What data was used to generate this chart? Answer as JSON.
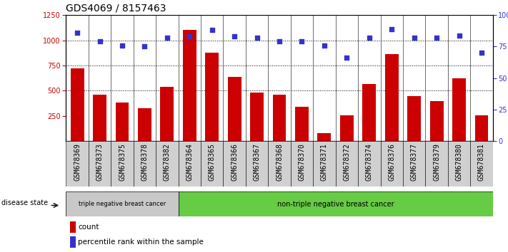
{
  "title": "GDS4069 / 8157463",
  "samples": [
    "GSM678369",
    "GSM678373",
    "GSM678375",
    "GSM678378",
    "GSM678382",
    "GSM678364",
    "GSM678365",
    "GSM678366",
    "GSM678367",
    "GSM678368",
    "GSM678370",
    "GSM678371",
    "GSM678372",
    "GSM678374",
    "GSM678376",
    "GSM678377",
    "GSM678379",
    "GSM678380",
    "GSM678381"
  ],
  "counts": [
    720,
    460,
    385,
    325,
    540,
    1100,
    880,
    640,
    480,
    460,
    340,
    80,
    255,
    565,
    860,
    450,
    395,
    625,
    255
  ],
  "percentiles": [
    86,
    79,
    76,
    75,
    82,
    83,
    88,
    83,
    82,
    79,
    79,
    76,
    66,
    82,
    89,
    82,
    82,
    84,
    70
  ],
  "group1_label": "triple negative breast cancer",
  "group1_count": 5,
  "group2_label": "non-triple negative breast cancer",
  "group2_count": 14,
  "disease_state_label": "disease state",
  "ylim_left": [
    0,
    1250
  ],
  "ylim_right": [
    0,
    100
  ],
  "yticks_left": [
    250,
    500,
    750,
    1000,
    1250
  ],
  "yticks_right": [
    0,
    25,
    50,
    75,
    100
  ],
  "bar_color": "#cc0000",
  "dot_color": "#3333cc",
  "group1_bg": "#c8c8c8",
  "group2_bg": "#66cc44",
  "legend_count_label": "count",
  "legend_pct_label": "percentile rank within the sample",
  "tick_fontsize": 7,
  "title_fontsize": 10
}
